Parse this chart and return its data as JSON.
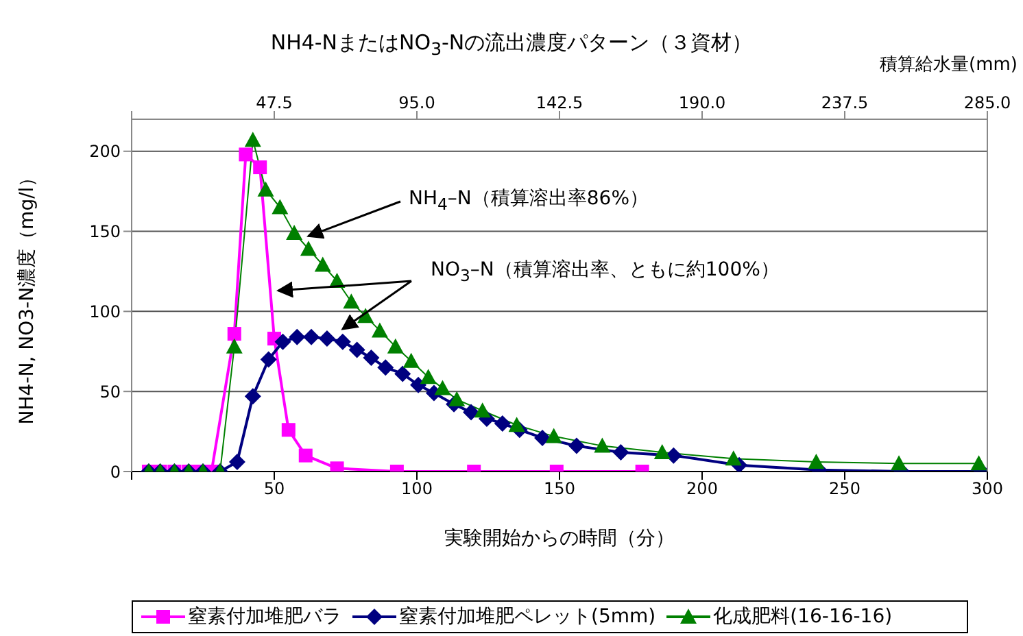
{
  "chart_data": {
    "type": "line",
    "title": "NH4-NまたはNO$_{3}$-Nの流出濃度パターン（３資材）",
    "xlabel": "実験開始からの時間（分）",
    "ylabel": "NH4-N, NO3-N濃度（mg/l）",
    "x2label": "積算給水量(mm)",
    "xlim": [
      0,
      300
    ],
    "xticks": [
      {
        "value": 0,
        "label": null
      },
      50,
      100,
      150,
      200,
      250,
      300
    ],
    "x2lim": [
      0,
      285
    ],
    "x2ticks": [
      {
        "value": 0,
        "label": null
      },
      {
        "value": 47.5,
        "label": "47.5"
      },
      {
        "value": 95,
        "label": "95.0"
      },
      {
        "value": 142.5,
        "label": "142.5"
      },
      {
        "value": 190,
        "label": "190.0"
      },
      {
        "value": 237.5,
        "label": "237.5"
      },
      {
        "value": 285,
        "label": "285.0"
      }
    ],
    "ylim": [
      0,
      220
    ],
    "yticks": [
      0,
      50,
      100,
      150,
      200
    ],
    "grid": "y",
    "legend": "bottom",
    "annotations": [
      {
        "text": "NH$_{4}$–N（積算溶出率86%）",
        "x": 62,
        "y": 147
      },
      {
        "text": "NO$_{3}$–N（積算溶出率、ともに約100%）",
        "x": 74,
        "y": 89
      }
    ],
    "series": [
      {
        "name": "窒素付加堆肥バラ",
        "color": "#ff00ff",
        "marker": "square",
        "x": [
          6,
          10,
          15,
          20,
          24,
          28,
          36,
          40,
          45,
          50,
          55,
          61,
          72,
          93,
          120,
          149,
          179
        ],
        "values": [
          0,
          0,
          0,
          0,
          0,
          0,
          86,
          198,
          190,
          83,
          26,
          10,
          2,
          0,
          0,
          0,
          0
        ]
      },
      {
        "name": "窒素付加堆肥ペレット(5mm)",
        "color": "#000080",
        "marker": "diamond",
        "x": [
          6,
          10,
          15,
          20,
          25,
          31,
          37,
          42.5,
          48,
          53,
          58,
          63,
          68.5,
          74,
          79,
          84,
          89,
          95,
          100.5,
          106,
          113,
          119,
          124.5,
          130,
          136,
          144,
          156,
          171.5,
          190,
          213,
          241,
          270,
          298
        ],
        "values": [
          0,
          0,
          0,
          0,
          0,
          0,
          6,
          47,
          70,
          81,
          84,
          84,
          83,
          81,
          76,
          71,
          65,
          61,
          54,
          49,
          42,
          37,
          33,
          30,
          26,
          21,
          16,
          12,
          10,
          4,
          1,
          0,
          0
        ]
      },
      {
        "name": "化成肥料(16-16-16)",
        "color": "#008000",
        "marker": "triangle",
        "x": [
          6,
          10,
          15,
          20,
          25,
          31,
          36,
          42.5,
          47,
          52,
          57,
          62,
          67,
          72,
          77,
          82,
          87,
          92.5,
          98,
          104,
          109,
          114,
          123,
          135,
          148,
          165,
          186,
          211,
          240,
          269,
          297
        ],
        "values": [
          0,
          0,
          0,
          0,
          0,
          0,
          78,
          207,
          176,
          165,
          149,
          139,
          129,
          119,
          106,
          97,
          88,
          78,
          69,
          59,
          52,
          45,
          38,
          29,
          22,
          16,
          12,
          8,
          6,
          5,
          5
        ]
      }
    ]
  }
}
